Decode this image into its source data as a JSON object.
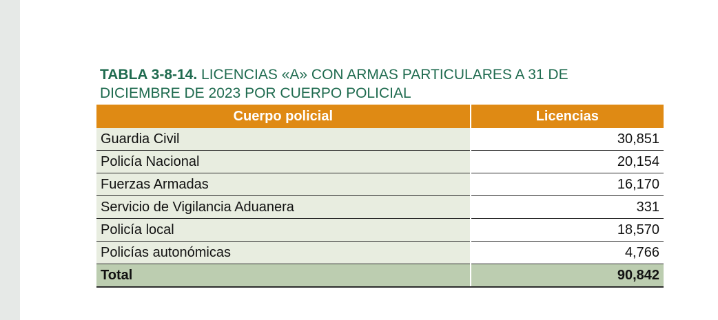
{
  "title": {
    "code": "TABLA 3-8-14.",
    "text": " LICENCIAS «A» CON ARMAS PARTICULARES A 31 DE DICIEMBRE DE 2023 POR CUERPO POLICIAL"
  },
  "table": {
    "headers": [
      "Cuerpo policial",
      "Licencias"
    ],
    "rows": [
      {
        "name": "Guardia Civil",
        "value": "30,851"
      },
      {
        "name": "Policía Nacional",
        "value": "20,154"
      },
      {
        "name": "Fuerzas Armadas",
        "value": "16,170"
      },
      {
        "name": "Servicio de Vigilancia Aduanera",
        "value": "331"
      },
      {
        "name": "Policía local",
        "value": "18,570"
      },
      {
        "name": "Policías autonómicas",
        "value": "4,766"
      }
    ],
    "total": {
      "name": "Total",
      "value": "90,842"
    }
  },
  "colors": {
    "title": "#1f6b4f",
    "header_bg": "#df8a14",
    "row_bg": "#e8ede0",
    "total_bg": "#bccdb0"
  }
}
